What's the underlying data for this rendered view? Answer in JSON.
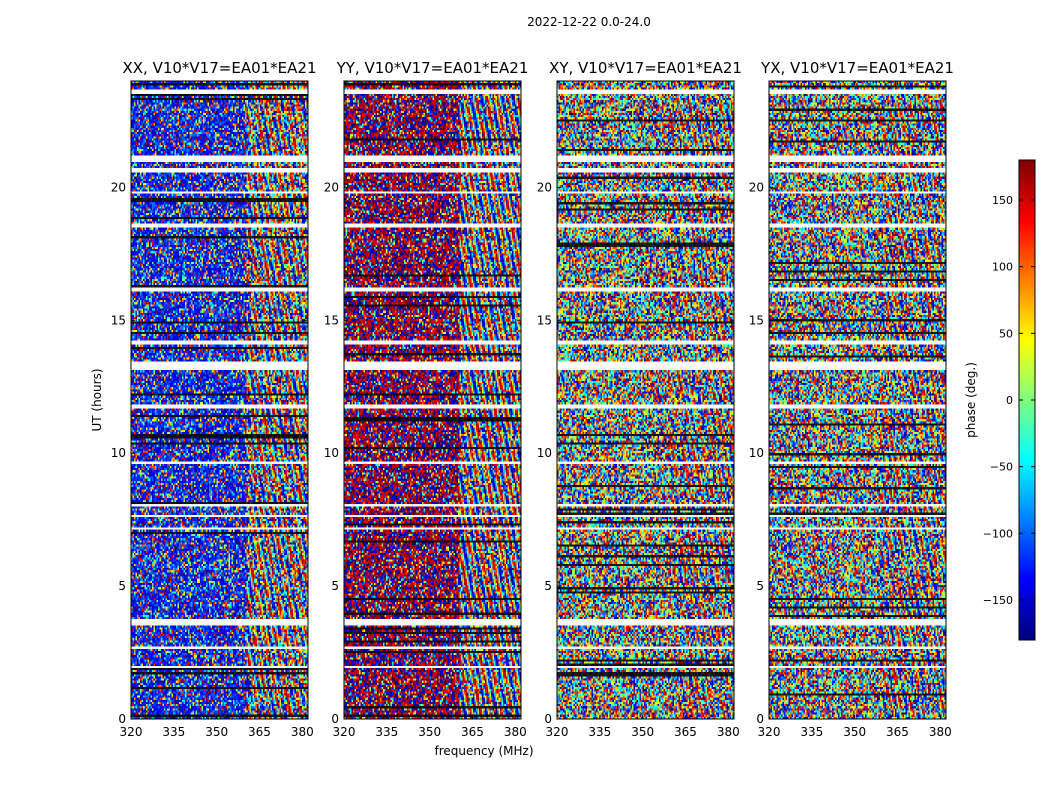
{
  "chart_data": {
    "type": "heatmap",
    "suptitle": "2022-12-22 0.0-24.0",
    "xlabel": "frequency (MHz)",
    "ylabel": "UT (hours)",
    "xlim": [
      320,
      382
    ],
    "ylim": [
      0,
      24
    ],
    "xticks": [
      320,
      335,
      350,
      365,
      380
    ],
    "yticks": [
      0,
      5,
      10,
      15,
      20
    ],
    "panels": [
      {
        "title": "XX, V10*V17=EA01*EA21",
        "bias": -130,
        "bias_strength": 0.55,
        "coherence": 0.5
      },
      {
        "title": "YY, V10*V17=EA01*EA21",
        "bias": 175,
        "bias_strength": 0.7,
        "coherence": 0.65
      },
      {
        "title": "XY, V10*V17=EA01*EA21",
        "bias": 0,
        "bias_strength": 0.0,
        "coherence": 0.35
      },
      {
        "title": "YX, V10*V17=EA01*EA21",
        "bias": 0,
        "bias_strength": 0.0,
        "coherence": 0.4
      }
    ],
    "flagged_time_ranges_hours": [
      [
        23.55,
        23.7
      ],
      [
        21.0,
        21.2
      ],
      [
        20.6,
        20.7
      ],
      [
        19.75,
        19.85
      ],
      [
        18.5,
        18.6
      ],
      [
        16.1,
        16.25
      ],
      [
        14.1,
        14.2
      ],
      [
        13.1,
        13.4
      ],
      [
        11.7,
        11.8
      ],
      [
        9.6,
        9.7
      ],
      [
        8.0,
        8.1
      ],
      [
        7.6,
        7.7
      ],
      [
        7.1,
        7.2
      ],
      [
        3.5,
        3.75
      ],
      [
        2.65,
        2.75
      ],
      [
        1.95,
        2.0
      ]
    ],
    "colorbar": {
      "label": "phase (deg.)",
      "range": [
        -180,
        180
      ],
      "ticks": [
        150,
        100,
        50,
        0,
        -50,
        -100,
        -150
      ],
      "colormap": "jet"
    }
  }
}
